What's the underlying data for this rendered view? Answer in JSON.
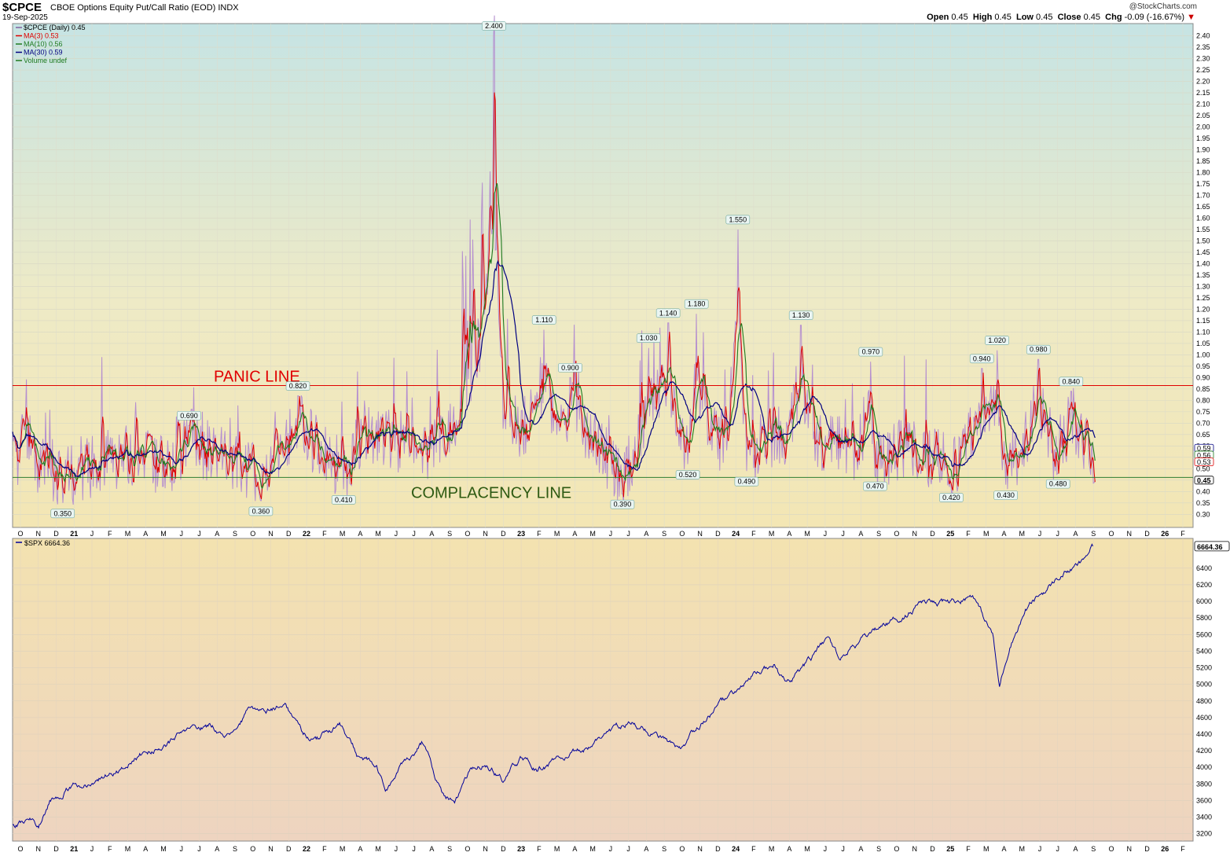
{
  "header": {
    "symbol": "$CPCE",
    "description": "CBOE Options Equity Put/Call Ratio (EOD)",
    "exchange": "INDX",
    "date": "19-Sep-2025",
    "brand": "@StockCharts.com",
    "open_label": "Open",
    "open": "0.45",
    "high_label": "High",
    "high": "0.45",
    "low_label": "Low",
    "low": "0.45",
    "close_label": "Close",
    "close": "0.45",
    "chg_label": "Chg",
    "chg": "-0.09 (-16.67%)",
    "chg_arrow": "▼"
  },
  "colors": {
    "cpce": "#b58fcf",
    "ma3": "#dd0000",
    "ma10": "#1f7a1f",
    "ma30": "#000080",
    "spx": "#000099",
    "panic": "#e00000",
    "complacency": "#2e7d32",
    "annotation_text_panic": "#e00000",
    "annotation_text_complacency": "#2e5a12"
  },
  "x_axis": {
    "labels": [
      "O",
      "N",
      "D",
      "21",
      "J",
      "F",
      "M",
      "A",
      "M",
      "J",
      "J",
      "A",
      "S",
      "O",
      "N",
      "D",
      "22",
      "F",
      "M",
      "A",
      "M",
      "J",
      "J",
      "A",
      "S",
      "O",
      "N",
      "D",
      "23",
      "F",
      "M",
      "A",
      "M",
      "J",
      "J",
      "A",
      "S",
      "O",
      "N",
      "D",
      "24",
      "F",
      "M",
      "A",
      "M",
      "J",
      "J",
      "A",
      "S",
      "O",
      "N",
      "D",
      "25",
      "F",
      "M",
      "A",
      "M",
      "J",
      "J",
      "A",
      "S",
      "O",
      "N",
      "D",
      "26",
      "F"
    ]
  },
  "chart_data": [
    {
      "type": "line",
      "legend": [
        {
          "label": "$CPCE (Daily) 0.45",
          "color": "#7f5fa0"
        },
        {
          "label": "MA(3) 0.53",
          "color": "#dd0000"
        },
        {
          "label": "MA(10) 0.56",
          "color": "#1f7a1f"
        },
        {
          "label": "MA(30) 0.59",
          "color": "#000080"
        },
        {
          "label": "Volume undef",
          "color": "#1f7a1f"
        }
      ],
      "ylim": [
        0.27,
        2.44
      ],
      "y_ticks": [
        "2.40",
        "2.35",
        "2.30",
        "2.25",
        "2.20",
        "2.15",
        "2.10",
        "2.05",
        "2.00",
        "1.95",
        "1.90",
        "1.85",
        "1.80",
        "1.75",
        "1.70",
        "1.65",
        "1.60",
        "1.55",
        "1.50",
        "1.45",
        "1.40",
        "1.35",
        "1.30",
        "1.25",
        "1.20",
        "1.15",
        "1.10",
        "1.05",
        "1.00",
        "0.95",
        "0.90",
        "0.85",
        "0.80",
        "0.75",
        "0.70",
        "0.65",
        "0.60",
        "0.55",
        "0.50",
        "0.45",
        "0.40",
        "0.35",
        "0.30"
      ],
      "x_range": [
        2020.75,
        2026.17
      ],
      "reference_lines": [
        {
          "label": "PANIC LINE",
          "value": 0.865
        },
        {
          "label": "COMPLACENCY LINE",
          "value": 0.462
        }
      ],
      "peak_labels": [
        {
          "x": 2020.98,
          "value": 0.35,
          "label": "0.350",
          "pos": "below"
        },
        {
          "x": 2021.56,
          "value": 0.69,
          "label": "0.690",
          "pos": "above"
        },
        {
          "x": 2021.89,
          "value": 0.36,
          "label": "0.360",
          "pos": "below"
        },
        {
          "x": 2022.06,
          "value": 0.82,
          "label": "0.820",
          "pos": "above"
        },
        {
          "x": 2022.27,
          "value": 0.41,
          "label": "0.410",
          "pos": "below"
        },
        {
          "x": 2022.96,
          "value": 2.4,
          "label": "2.400",
          "pos": "above"
        },
        {
          "x": 2023.19,
          "value": 1.11,
          "label": "1.110",
          "pos": "above"
        },
        {
          "x": 2023.31,
          "value": 0.9,
          "label": "0.900",
          "pos": "above"
        },
        {
          "x": 2023.55,
          "value": 0.39,
          "label": "0.390",
          "pos": "below"
        },
        {
          "x": 2023.67,
          "value": 1.03,
          "label": "1.030",
          "pos": "above"
        },
        {
          "x": 2023.76,
          "value": 1.14,
          "label": "1.140",
          "pos": "above"
        },
        {
          "x": 2023.85,
          "value": 0.52,
          "label": "0.520",
          "pos": "below"
        },
        {
          "x": 2023.89,
          "value": 1.18,
          "label": "1.180",
          "pos": "above"
        },
        {
          "x": 2024.08,
          "value": 1.55,
          "label": "1.550",
          "pos": "above"
        },
        {
          "x": 2024.12,
          "value": 0.49,
          "label": "0.490",
          "pos": "below"
        },
        {
          "x": 2024.37,
          "value": 1.13,
          "label": "1.130",
          "pos": "above"
        },
        {
          "x": 2024.69,
          "value": 0.97,
          "label": "0.970",
          "pos": "above"
        },
        {
          "x": 2024.71,
          "value": 0.47,
          "label": "0.470",
          "pos": "below"
        },
        {
          "x": 2025.06,
          "value": 0.42,
          "label": "0.420",
          "pos": "below"
        },
        {
          "x": 2025.2,
          "value": 0.94,
          "label": "0.940",
          "pos": "above"
        },
        {
          "x": 2025.27,
          "value": 1.02,
          "label": "1.020",
          "pos": "above"
        },
        {
          "x": 2025.31,
          "value": 0.43,
          "label": "0.430",
          "pos": "below"
        },
        {
          "x": 2025.46,
          "value": 0.98,
          "label": "0.980",
          "pos": "above"
        },
        {
          "x": 2025.55,
          "value": 0.48,
          "label": "0.480",
          "pos": "below"
        },
        {
          "x": 2025.61,
          "value": 0.84,
          "label": "0.840",
          "pos": "above"
        }
      ],
      "anchors": [
        [
          2020.75,
          0.52
        ],
        [
          2020.8,
          0.6
        ],
        [
          2020.87,
          0.45
        ],
        [
          2020.93,
          0.43
        ],
        [
          2020.98,
          0.35
        ],
        [
          2021.08,
          0.44
        ],
        [
          2021.2,
          0.5
        ],
        [
          2021.33,
          0.55
        ],
        [
          2021.42,
          0.45
        ],
        [
          2021.5,
          0.52
        ],
        [
          2021.56,
          0.69
        ],
        [
          2021.66,
          0.55
        ],
        [
          2021.78,
          0.48
        ],
        [
          2021.89,
          0.36
        ],
        [
          2021.96,
          0.58
        ],
        [
          2022.06,
          0.82
        ],
        [
          2022.15,
          0.6
        ],
        [
          2022.27,
          0.41
        ],
        [
          2022.35,
          0.68
        ],
        [
          2022.45,
          0.72
        ],
        [
          2022.55,
          0.62
        ],
        [
          2022.65,
          0.6
        ],
        [
          2022.75,
          0.7
        ],
        [
          2022.83,
          1.1
        ],
        [
          2022.9,
          1.45
        ],
        [
          2022.96,
          2.4
        ],
        [
          2023.0,
          1.0
        ],
        [
          2023.08,
          0.7
        ],
        [
          2023.19,
          1.11
        ],
        [
          2023.25,
          0.72
        ],
        [
          2023.31,
          0.9
        ],
        [
          2023.4,
          0.68
        ],
        [
          2023.48,
          0.5
        ],
        [
          2023.55,
          0.39
        ],
        [
          2023.62,
          0.6
        ],
        [
          2023.67,
          1.03
        ],
        [
          2023.76,
          1.14
        ],
        [
          2023.82,
          0.78
        ],
        [
          2023.85,
          0.52
        ],
        [
          2023.89,
          1.18
        ],
        [
          2023.95,
          0.72
        ],
        [
          2024.02,
          0.65
        ],
        [
          2024.08,
          1.55
        ],
        [
          2024.12,
          0.49
        ],
        [
          2024.2,
          0.65
        ],
        [
          2024.3,
          0.7
        ],
        [
          2024.37,
          1.13
        ],
        [
          2024.45,
          0.65
        ],
        [
          2024.55,
          0.6
        ],
        [
          2024.62,
          0.55
        ],
        [
          2024.69,
          0.97
        ],
        [
          2024.71,
          0.47
        ],
        [
          2024.8,
          0.58
        ],
        [
          2024.92,
          0.55
        ],
        [
          2025.0,
          0.52
        ],
        [
          2025.06,
          0.42
        ],
        [
          2025.12,
          0.58
        ],
        [
          2025.2,
          0.94
        ],
        [
          2025.27,
          1.02
        ],
        [
          2025.31,
          0.43
        ],
        [
          2025.38,
          0.58
        ],
        [
          2025.46,
          0.98
        ],
        [
          2025.55,
          0.48
        ],
        [
          2025.61,
          0.84
        ],
        [
          2025.68,
          0.6
        ],
        [
          2025.72,
          0.45
        ]
      ]
    },
    {
      "type": "line",
      "legend": [
        {
          "label": "$SPX 6664.36",
          "color": "#000099"
        }
      ],
      "ylim": [
        3150,
        6720
      ],
      "y_ticks": [
        "6400",
        "6200",
        "6000",
        "5800",
        "5600",
        "5400",
        "5200",
        "5000",
        "4800",
        "4600",
        "4400",
        "4200",
        "4000",
        "3800",
        "3600",
        "3400",
        "3200"
      ],
      "last_value": "6664.36",
      "x_range": [
        2020.75,
        2026.17
      ],
      "anchors": [
        [
          2020.75,
          3300
        ],
        [
          2020.83,
          3350
        ],
        [
          2020.87,
          3300
        ],
        [
          2020.92,
          3600
        ],
        [
          2021.0,
          3750
        ],
        [
          2021.08,
          3800
        ],
        [
          2021.16,
          3900
        ],
        [
          2021.25,
          4000
        ],
        [
          2021.33,
          4150
        ],
        [
          2021.42,
          4250
        ],
        [
          2021.5,
          4350
        ],
        [
          2021.58,
          4450
        ],
        [
          2021.66,
          4500
        ],
        [
          2021.75,
          4400
        ],
        [
          2021.83,
          4650
        ],
        [
          2021.92,
          4700
        ],
        [
          2022.0,
          4780
        ],
        [
          2022.08,
          4400
        ],
        [
          2022.16,
          4350
        ],
        [
          2022.25,
          4550
        ],
        [
          2022.33,
          4150
        ],
        [
          2022.42,
          4000
        ],
        [
          2022.46,
          3700
        ],
        [
          2022.55,
          4050
        ],
        [
          2022.63,
          4300
        ],
        [
          2022.72,
          3700
        ],
        [
          2022.78,
          3580
        ],
        [
          2022.85,
          3900
        ],
        [
          2022.92,
          4050
        ],
        [
          2023.0,
          3850
        ],
        [
          2023.08,
          4100
        ],
        [
          2023.16,
          3950
        ],
        [
          2023.25,
          4100
        ],
        [
          2023.33,
          4150
        ],
        [
          2023.42,
          4300
        ],
        [
          2023.5,
          4450
        ],
        [
          2023.58,
          4550
        ],
        [
          2023.66,
          4450
        ],
        [
          2023.75,
          4300
        ],
        [
          2023.82,
          4150
        ],
        [
          2023.92,
          4550
        ],
        [
          2024.0,
          4750
        ],
        [
          2024.08,
          4900
        ],
        [
          2024.16,
          5100
        ],
        [
          2024.25,
          5250
        ],
        [
          2024.3,
          5000
        ],
        [
          2024.42,
          5300
        ],
        [
          2024.5,
          5550
        ],
        [
          2024.55,
          5300
        ],
        [
          2024.6,
          5450
        ],
        [
          2024.67,
          5550
        ],
        [
          2024.75,
          5700
        ],
        [
          2024.83,
          5800
        ],
        [
          2024.92,
          6000
        ],
        [
          2025.0,
          5950
        ],
        [
          2025.08,
          6000
        ],
        [
          2025.16,
          6100
        ],
        [
          2025.21,
          5800
        ],
        [
          2025.25,
          5600
        ],
        [
          2025.28,
          4950
        ],
        [
          2025.33,
          5500
        ],
        [
          2025.4,
          5900
        ],
        [
          2025.5,
          6150
        ],
        [
          2025.58,
          6350
        ],
        [
          2025.66,
          6450
        ],
        [
          2025.71,
          6664.36
        ]
      ]
    }
  ]
}
